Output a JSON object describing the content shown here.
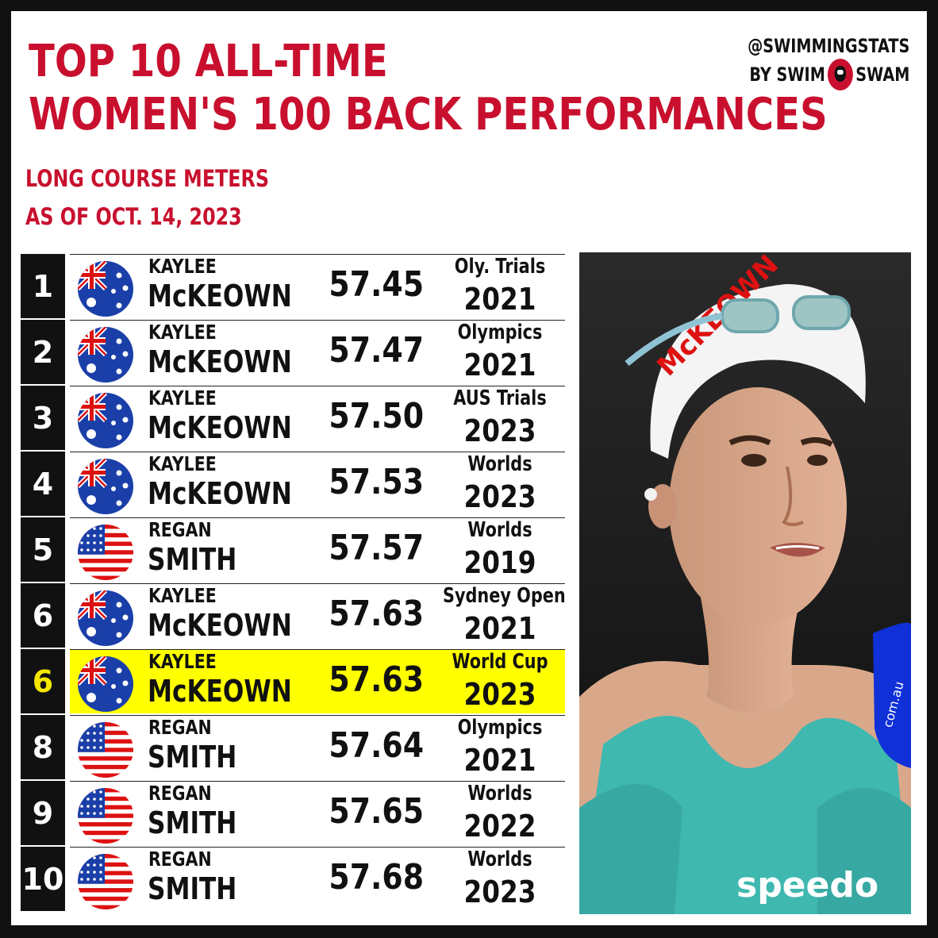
{
  "title": {
    "line1": "TOP 10 ALL-TIME",
    "line2": "WOMEN'S 100 BACK PERFORMANCES"
  },
  "subtitle": {
    "line1": "LONG COURSE METERS",
    "line2": "AS OF OCT. 14, 2023"
  },
  "brand": {
    "handle": "@SWIMMINGSTATS",
    "by": "BY SWIM",
    "swam": "SWAM"
  },
  "colors": {
    "accent": "#c8102e",
    "highlight": "#ffff00",
    "highlight_rank": "#f5e600"
  },
  "rows": [
    {
      "rank": "1",
      "first": "KAYLEE",
      "last": "McKEOWN",
      "time": "57.45",
      "meet": "Oly. Trials",
      "year": "2021",
      "flag": "aus",
      "highlight": false
    },
    {
      "rank": "2",
      "first": "KAYLEE",
      "last": "McKEOWN",
      "time": "57.47",
      "meet": "Olympics",
      "year": "2021",
      "flag": "aus",
      "highlight": false
    },
    {
      "rank": "3",
      "first": "KAYLEE",
      "last": "McKEOWN",
      "time": "57.50",
      "meet": "AUS Trials",
      "year": "2023",
      "flag": "aus",
      "highlight": false
    },
    {
      "rank": "4",
      "first": "KAYLEE",
      "last": "McKEOWN",
      "time": "57.53",
      "meet": "Worlds",
      "year": "2023",
      "flag": "aus",
      "highlight": false
    },
    {
      "rank": "5",
      "first": "REGAN",
      "last": "SMITH",
      "time": "57.57",
      "meet": "Worlds",
      "year": "2019",
      "flag": "usa",
      "highlight": false
    },
    {
      "rank": "6",
      "first": "KAYLEE",
      "last": "McKEOWN",
      "time": "57.63",
      "meet": "Sydney Open",
      "year": "2021",
      "flag": "aus",
      "highlight": false
    },
    {
      "rank": "6",
      "first": "KAYLEE",
      "last": "McKEOWN",
      "time": "57.63",
      "meet": "World Cup",
      "year": "2023",
      "flag": "aus",
      "highlight": true
    },
    {
      "rank": "8",
      "first": "REGAN",
      "last": "SMITH",
      "time": "57.64",
      "meet": "Olympics",
      "year": "2021",
      "flag": "usa",
      "highlight": false
    },
    {
      "rank": "9",
      "first": "REGAN",
      "last": "SMITH",
      "time": "57.65",
      "meet": "Worlds",
      "year": "2022",
      "flag": "usa",
      "highlight": false
    },
    {
      "rank": "10",
      "first": "REGAN",
      "last": "SMITH",
      "time": "57.68",
      "meet": "Worlds",
      "year": "2023",
      "flag": "usa",
      "highlight": false
    }
  ],
  "photo": {
    "cap_text": "McKEOWN",
    "suit_logo": "speedo",
    "mic_text": "com.au"
  }
}
